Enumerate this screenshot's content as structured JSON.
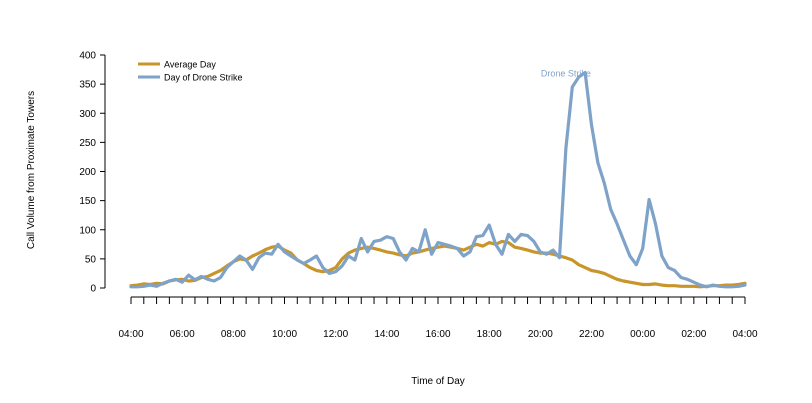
{
  "chart_data": {
    "type": "line",
    "title": "",
    "xlabel": "Time of Day",
    "ylabel": "Call Volume from Proximate Towers",
    "ylim": [
      0,
      400
    ],
    "xlim": [
      4,
      28
    ],
    "yticks": [
      0,
      50,
      100,
      150,
      200,
      250,
      300,
      350,
      400
    ],
    "xticks": [
      {
        "value": 4,
        "label": "04:00"
      },
      {
        "value": 6,
        "label": "06:00"
      },
      {
        "value": 8,
        "label": "08:00"
      },
      {
        "value": 10,
        "label": "10:00"
      },
      {
        "value": 12,
        "label": "12:00"
      },
      {
        "value": 14,
        "label": "14:00"
      },
      {
        "value": 16,
        "label": "16:00"
      },
      {
        "value": 18,
        "label": "18:00"
      },
      {
        "value": 20,
        "label": "20:00"
      },
      {
        "value": 22,
        "label": "22:00"
      },
      {
        "value": 24,
        "label": "00:00"
      },
      {
        "value": 26,
        "label": "02:00"
      },
      {
        "value": 28,
        "label": "04:00"
      }
    ],
    "minor_tick_step": 0.5,
    "legend_position": "top-left",
    "annotation": {
      "text": "Drone Strike",
      "x": 21.0,
      "y": 363
    },
    "series": [
      {
        "name": "Average Day",
        "color": "#c8952a",
        "x": [
          4.0,
          4.25,
          4.5,
          4.75,
          5.0,
          5.25,
          5.5,
          5.75,
          6.0,
          6.25,
          6.5,
          6.75,
          7.0,
          7.25,
          7.5,
          7.75,
          8.0,
          8.25,
          8.5,
          8.75,
          9.0,
          9.25,
          9.5,
          9.75,
          10.0,
          10.25,
          10.5,
          10.75,
          11.0,
          11.25,
          11.5,
          11.75,
          12.0,
          12.25,
          12.5,
          12.75,
          13.0,
          13.25,
          13.5,
          13.75,
          14.0,
          14.25,
          14.5,
          14.75,
          15.0,
          15.25,
          15.5,
          15.75,
          16.0,
          16.25,
          16.5,
          16.75,
          17.0,
          17.25,
          17.5,
          17.75,
          18.0,
          18.25,
          18.5,
          18.75,
          19.0,
          19.25,
          19.5,
          19.75,
          20.0,
          20.25,
          20.5,
          20.75,
          21.0,
          21.25,
          21.5,
          21.75,
          22.0,
          22.25,
          22.5,
          22.75,
          23.0,
          23.25,
          23.5,
          23.75,
          24.0,
          24.25,
          24.5,
          24.75,
          25.0,
          25.25,
          25.5,
          25.75,
          26.0,
          26.25,
          26.5,
          26.75,
          27.0,
          27.25,
          27.5,
          27.75,
          28.0
        ],
        "values": [
          4,
          5,
          7,
          6,
          8,
          7,
          12,
          14,
          15,
          12,
          13,
          18,
          20,
          25,
          30,
          38,
          45,
          50,
          48,
          55,
          60,
          66,
          70,
          72,
          65,
          60,
          48,
          42,
          35,
          30,
          28,
          30,
          35,
          50,
          60,
          65,
          68,
          70,
          68,
          65,
          62,
          60,
          57,
          55,
          60,
          62,
          65,
          68,
          70,
          72,
          70,
          68,
          65,
          70,
          75,
          72,
          78,
          75,
          80,
          78,
          70,
          68,
          65,
          62,
          60,
          60,
          58,
          55,
          52,
          48,
          40,
          35,
          30,
          28,
          25,
          20,
          15,
          12,
          10,
          8,
          6,
          6,
          7,
          5,
          4,
          4,
          3,
          3,
          3,
          2,
          3,
          4,
          4,
          5,
          5,
          6,
          8
        ],
        "label": "Average Day"
      },
      {
        "name": "Day of Drone Strike",
        "color": "#7ea2c8",
        "x": [
          4.0,
          4.25,
          4.5,
          4.75,
          5.0,
          5.25,
          5.5,
          5.75,
          6.0,
          6.25,
          6.5,
          6.75,
          7.0,
          7.25,
          7.5,
          7.75,
          8.0,
          8.25,
          8.5,
          8.75,
          9.0,
          9.25,
          9.5,
          9.75,
          10.0,
          10.25,
          10.5,
          10.75,
          11.0,
          11.25,
          11.5,
          11.75,
          12.0,
          12.25,
          12.5,
          12.75,
          13.0,
          13.25,
          13.5,
          13.75,
          14.0,
          14.25,
          14.5,
          14.75,
          15.0,
          15.25,
          15.5,
          15.75,
          16.0,
          16.25,
          16.5,
          16.75,
          17.0,
          17.25,
          17.5,
          17.75,
          18.0,
          18.25,
          18.5,
          18.75,
          19.0,
          19.25,
          19.5,
          19.75,
          20.0,
          20.25,
          20.5,
          20.75,
          21.0,
          21.25,
          21.5,
          21.75,
          22.0,
          22.25,
          22.5,
          22.75,
          23.0,
          23.25,
          23.5,
          23.75,
          24.0,
          24.25,
          24.5,
          24.75,
          25.0,
          25.25,
          25.5,
          25.75,
          26.0,
          26.25,
          26.5,
          26.75,
          27.0,
          27.25,
          27.5,
          27.75,
          28.0
        ],
        "values": [
          2,
          2,
          3,
          5,
          3,
          8,
          12,
          15,
          10,
          22,
          14,
          20,
          15,
          12,
          18,
          35,
          45,
          55,
          48,
          32,
          52,
          60,
          58,
          75,
          62,
          55,
          48,
          42,
          48,
          55,
          35,
          25,
          28,
          38,
          55,
          48,
          85,
          62,
          80,
          82,
          88,
          85,
          62,
          48,
          68,
          62,
          100,
          58,
          78,
          75,
          72,
          68,
          55,
          62,
          88,
          90,
          108,
          75,
          58,
          92,
          80,
          92,
          90,
          80,
          62,
          58,
          65,
          52,
          240,
          345,
          362,
          370,
          280,
          215,
          180,
          135,
          110,
          82,
          55,
          40,
          68,
          152,
          110,
          55,
          35,
          30,
          18,
          15,
          10,
          5,
          2,
          5,
          3,
          2,
          2,
          3,
          5
        ],
        "label": "Day of Drone Strike"
      }
    ]
  }
}
